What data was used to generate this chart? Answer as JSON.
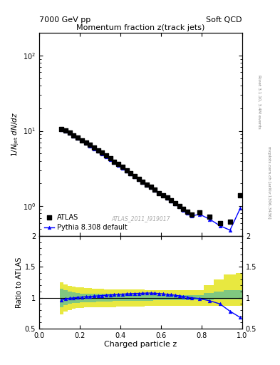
{
  "title_main": "Momentum fraction z(track jets)",
  "header_left": "7000 GeV pp",
  "header_right": "Soft QCD",
  "watermark": "ATLAS_2011_I919017",
  "right_label": "mcplots.cern.ch [arXiv:1306.3436]",
  "rivet_label": "Rivet 3.1.10, 3.4M events",
  "ylabel_main": "1/N_jet dN/dz",
  "ylabel_ratio": "Ratio to ATLAS",
  "xlabel": "Charged particle z",
  "atlas_x": [
    0.11,
    0.13,
    0.15,
    0.17,
    0.19,
    0.21,
    0.23,
    0.25,
    0.27,
    0.29,
    0.31,
    0.33,
    0.35,
    0.37,
    0.39,
    0.41,
    0.43,
    0.45,
    0.47,
    0.49,
    0.51,
    0.53,
    0.55,
    0.57,
    0.59,
    0.61,
    0.63,
    0.65,
    0.67,
    0.69,
    0.71,
    0.73,
    0.75,
    0.79,
    0.84,
    0.89,
    0.94,
    0.99
  ],
  "atlas_y": [
    10.6,
    10.1,
    9.4,
    8.7,
    8.1,
    7.5,
    7.0,
    6.5,
    6.0,
    5.5,
    5.1,
    4.7,
    4.3,
    3.9,
    3.6,
    3.3,
    3.0,
    2.75,
    2.5,
    2.3,
    2.1,
    1.95,
    1.8,
    1.65,
    1.5,
    1.4,
    1.3,
    1.2,
    1.1,
    1.0,
    0.92,
    0.84,
    0.77,
    0.82,
    0.73,
    0.6,
    0.62,
    1.4
  ],
  "pythia_x": [
    0.11,
    0.13,
    0.15,
    0.17,
    0.19,
    0.21,
    0.23,
    0.25,
    0.27,
    0.29,
    0.31,
    0.33,
    0.35,
    0.37,
    0.39,
    0.41,
    0.43,
    0.45,
    0.47,
    0.49,
    0.51,
    0.53,
    0.55,
    0.57,
    0.59,
    0.61,
    0.63,
    0.65,
    0.67,
    0.69,
    0.71,
    0.73,
    0.75,
    0.79,
    0.84,
    0.89,
    0.94,
    0.99
  ],
  "pythia_y": [
    10.4,
    9.9,
    9.2,
    8.55,
    7.95,
    7.4,
    6.85,
    6.3,
    5.8,
    5.35,
    4.95,
    4.55,
    4.18,
    3.82,
    3.5,
    3.2,
    2.93,
    2.68,
    2.44,
    2.24,
    2.06,
    1.9,
    1.75,
    1.62,
    1.49,
    1.38,
    1.27,
    1.17,
    1.07,
    0.98,
    0.89,
    0.81,
    0.74,
    0.78,
    0.67,
    0.55,
    0.48,
    0.93
  ],
  "ratio_pythia_x": [
    0.11,
    0.13,
    0.15,
    0.17,
    0.19,
    0.21,
    0.23,
    0.25,
    0.27,
    0.29,
    0.31,
    0.33,
    0.35,
    0.37,
    0.39,
    0.41,
    0.43,
    0.45,
    0.47,
    0.49,
    0.51,
    0.53,
    0.55,
    0.57,
    0.59,
    0.61,
    0.63,
    0.65,
    0.67,
    0.69,
    0.71,
    0.73,
    0.75,
    0.79,
    0.84,
    0.89,
    0.94,
    0.99
  ],
  "ratio_pythia_y": [
    0.962,
    0.98,
    0.99,
    0.998,
    1.005,
    1.01,
    1.015,
    1.02,
    1.025,
    1.03,
    1.035,
    1.04,
    1.045,
    1.05,
    1.055,
    1.058,
    1.062,
    1.065,
    1.068,
    1.07,
    1.072,
    1.075,
    1.075,
    1.072,
    1.068,
    1.062,
    1.055,
    1.048,
    1.04,
    1.03,
    1.02,
    1.01,
    1.0,
    0.985,
    0.95,
    0.9,
    0.78,
    0.68
  ],
  "band_green_xlo": [
    0.1,
    0.12,
    0.14,
    0.16,
    0.18,
    0.2,
    0.22,
    0.24,
    0.26,
    0.28,
    0.3,
    0.32,
    0.34,
    0.36,
    0.38,
    0.4,
    0.42,
    0.44,
    0.46,
    0.48,
    0.5,
    0.52,
    0.54,
    0.56,
    0.58,
    0.6,
    0.62,
    0.64,
    0.66,
    0.68,
    0.7,
    0.72,
    0.74,
    0.76,
    0.81,
    0.86,
    0.91,
    0.97
  ],
  "band_green_xhi": [
    0.12,
    0.14,
    0.16,
    0.18,
    0.2,
    0.22,
    0.24,
    0.26,
    0.28,
    0.3,
    0.32,
    0.34,
    0.36,
    0.38,
    0.4,
    0.42,
    0.44,
    0.46,
    0.48,
    0.5,
    0.52,
    0.54,
    0.56,
    0.58,
    0.6,
    0.62,
    0.64,
    0.66,
    0.68,
    0.7,
    0.72,
    0.74,
    0.76,
    0.81,
    0.86,
    0.91,
    0.97,
    1.0
  ],
  "band_green_lo": [
    0.85,
    0.88,
    0.9,
    0.91,
    0.92,
    0.93,
    0.93,
    0.93,
    0.93,
    0.94,
    0.94,
    0.94,
    0.94,
    0.95,
    0.95,
    0.95,
    0.95,
    0.95,
    0.95,
    0.95,
    0.95,
    0.95,
    0.95,
    0.96,
    0.96,
    0.96,
    0.96,
    0.96,
    0.96,
    0.96,
    0.96,
    0.96,
    0.96,
    0.96,
    0.96,
    0.97,
    0.97,
    0.97
  ],
  "band_green_hi": [
    1.15,
    1.12,
    1.1,
    1.09,
    1.08,
    1.07,
    1.07,
    1.07,
    1.07,
    1.06,
    1.06,
    1.06,
    1.06,
    1.05,
    1.05,
    1.05,
    1.05,
    1.05,
    1.05,
    1.05,
    1.05,
    1.05,
    1.05,
    1.04,
    1.04,
    1.04,
    1.04,
    1.04,
    1.04,
    1.04,
    1.04,
    1.04,
    1.04,
    1.04,
    1.08,
    1.1,
    1.12,
    1.12
  ],
  "band_yellow_xlo": [
    0.1,
    0.12,
    0.14,
    0.16,
    0.18,
    0.2,
    0.22,
    0.24,
    0.26,
    0.28,
    0.3,
    0.32,
    0.34,
    0.36,
    0.38,
    0.4,
    0.42,
    0.44,
    0.46,
    0.48,
    0.5,
    0.52,
    0.54,
    0.56,
    0.58,
    0.6,
    0.62,
    0.64,
    0.66,
    0.68,
    0.7,
    0.72,
    0.74,
    0.76,
    0.81,
    0.86,
    0.91,
    0.97
  ],
  "band_yellow_xhi": [
    0.12,
    0.14,
    0.16,
    0.18,
    0.2,
    0.22,
    0.24,
    0.26,
    0.28,
    0.3,
    0.32,
    0.34,
    0.36,
    0.38,
    0.4,
    0.42,
    0.44,
    0.46,
    0.48,
    0.5,
    0.52,
    0.54,
    0.56,
    0.58,
    0.6,
    0.62,
    0.64,
    0.66,
    0.68,
    0.7,
    0.72,
    0.74,
    0.76,
    0.81,
    0.86,
    0.91,
    0.97,
    1.0
  ],
  "band_yellow_lo": [
    0.73,
    0.78,
    0.8,
    0.82,
    0.83,
    0.83,
    0.84,
    0.84,
    0.84,
    0.85,
    0.85,
    0.85,
    0.85,
    0.85,
    0.86,
    0.86,
    0.86,
    0.86,
    0.86,
    0.86,
    0.86,
    0.87,
    0.87,
    0.87,
    0.87,
    0.87,
    0.87,
    0.87,
    0.87,
    0.87,
    0.87,
    0.87,
    0.87,
    0.87,
    0.87,
    0.87,
    0.87,
    0.87
  ],
  "band_yellow_hi": [
    1.25,
    1.22,
    1.19,
    1.18,
    1.17,
    1.17,
    1.16,
    1.16,
    1.15,
    1.15,
    1.15,
    1.14,
    1.14,
    1.14,
    1.13,
    1.13,
    1.13,
    1.13,
    1.13,
    1.13,
    1.13,
    1.12,
    1.12,
    1.12,
    1.12,
    1.12,
    1.12,
    1.12,
    1.12,
    1.12,
    1.12,
    1.12,
    1.12,
    1.12,
    1.2,
    1.3,
    1.38,
    1.4
  ],
  "xlim": [
    0.0,
    1.0
  ],
  "ylim_main_lo": 0.4,
  "ylim_main_hi": 200,
  "ylim_ratio": [
    0.5,
    2.0
  ],
  "yticks_ratio": [
    0.5,
    1.0,
    1.5,
    2.0
  ],
  "ytick_labels_ratio": [
    "0.5",
    "1",
    "1.5",
    "2"
  ],
  "color_atlas": "black",
  "color_pythia": "blue",
  "color_green_band": "#80c880",
  "color_yellow_band": "#e8e840"
}
